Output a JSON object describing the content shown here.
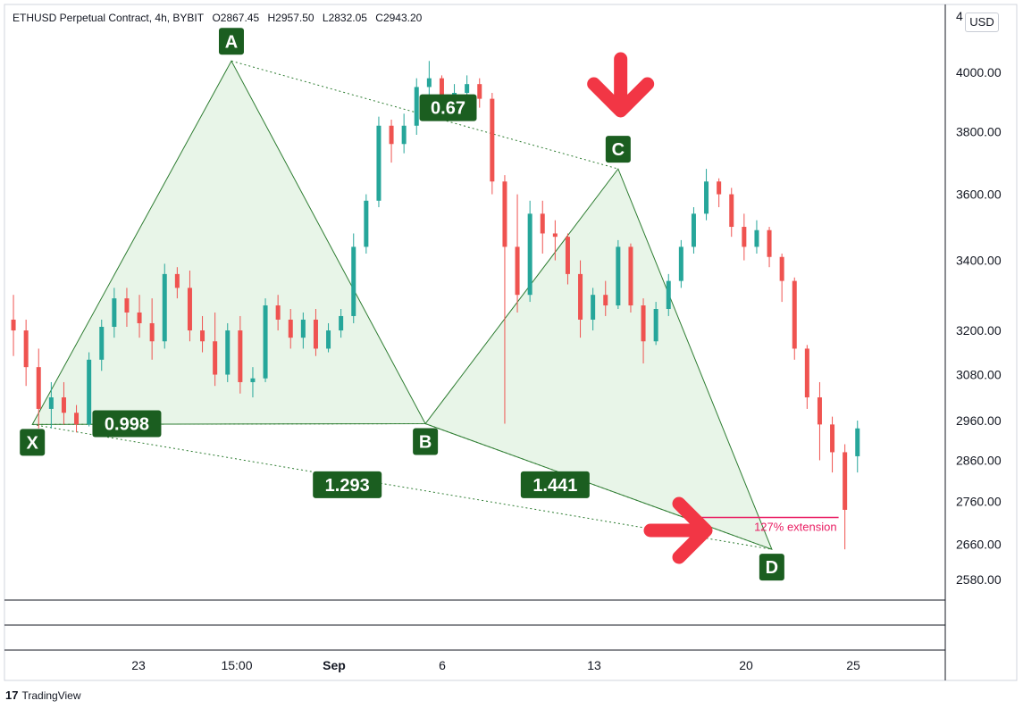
{
  "header": {
    "symbol": "ETHUSD Perpetual Contract, 4h, BYBIT",
    "open": "O2867.45",
    "high": "H2957.50",
    "low": "L2832.05",
    "close": "C2943.20"
  },
  "currency_button": "USD",
  "brand": {
    "logo": "17",
    "name": "TradingView"
  },
  "chart_data": {
    "type": "candlestick",
    "y_scale": "log",
    "ylim": [
      2550,
      4200
    ],
    "y_ticks": [
      "4000.00",
      "3800.00",
      "3600.00",
      "3400.00",
      "3200.00",
      "3080.00",
      "2960.00",
      "2860.00",
      "2760.00",
      "2660.00",
      "2580.00"
    ],
    "y_tick_values": [
      4000,
      3800,
      3600,
      3400,
      3200,
      3080,
      2960,
      2860,
      2760,
      2660,
      2580
    ],
    "y_tick_partial": "4",
    "x_ticks": [
      "23",
      "15:00",
      "Sep",
      "6",
      "13",
      "20",
      "25"
    ],
    "pattern_points": [
      {
        "label": "X",
        "time": 2.0,
        "price": 2950
      },
      {
        "label": "A",
        "time": 17.8,
        "price": 4040
      },
      {
        "label": "B",
        "time": 33.2,
        "price": 2952
      },
      {
        "label": "C",
        "time": 48.5,
        "price": 3680
      },
      {
        "label": "D",
        "time": 60.7,
        "price": 2648
      }
    ],
    "ratios": [
      {
        "label": "0.998",
        "time": 9.5,
        "price": 2952
      },
      {
        "label": "0.67",
        "time": 35.0,
        "price": 3880
      },
      {
        "label": "1.293",
        "time": 27.0,
        "price": 2800
      },
      {
        "label": "1.441",
        "time": 43.5,
        "price": 2800
      }
    ],
    "extension": {
      "label": "127% extension",
      "price": 2722,
      "from_time": 54.4,
      "to_time": 66.0
    },
    "candles": [
      {
        "o": 3230,
        "h": 3300,
        "l": 3130,
        "c": 3200
      },
      {
        "o": 3200,
        "h": 3230,
        "l": 3050,
        "c": 3100
      },
      {
        "o": 3100,
        "h": 3150,
        "l": 2940,
        "c": 2990
      },
      {
        "o": 2990,
        "h": 3060,
        "l": 2940,
        "c": 3020
      },
      {
        "o": 3020,
        "h": 3060,
        "l": 2950,
        "c": 2980
      },
      {
        "o": 2980,
        "h": 3000,
        "l": 2930,
        "c": 2950
      },
      {
        "o": 2950,
        "h": 3140,
        "l": 2945,
        "c": 3120
      },
      {
        "o": 3120,
        "h": 3230,
        "l": 3090,
        "c": 3210
      },
      {
        "o": 3210,
        "h": 3320,
        "l": 3180,
        "c": 3290
      },
      {
        "o": 3290,
        "h": 3320,
        "l": 3210,
        "c": 3250
      },
      {
        "o": 3250,
        "h": 3300,
        "l": 3180,
        "c": 3220
      },
      {
        "o": 3220,
        "h": 3290,
        "l": 3120,
        "c": 3170
      },
      {
        "o": 3170,
        "h": 3390,
        "l": 3150,
        "c": 3360
      },
      {
        "o": 3360,
        "h": 3380,
        "l": 3290,
        "c": 3320
      },
      {
        "o": 3320,
        "h": 3370,
        "l": 3170,
        "c": 3200
      },
      {
        "o": 3200,
        "h": 3240,
        "l": 3140,
        "c": 3170
      },
      {
        "o": 3170,
        "h": 3250,
        "l": 3050,
        "c": 3080
      },
      {
        "o": 3080,
        "h": 3220,
        "l": 3060,
        "c": 3200
      },
      {
        "o": 3200,
        "h": 3240,
        "l": 3030,
        "c": 3060
      },
      {
        "o": 3060,
        "h": 3100,
        "l": 3020,
        "c": 3070
      },
      {
        "o": 3070,
        "h": 3290,
        "l": 3060,
        "c": 3270
      },
      {
        "o": 3270,
        "h": 3300,
        "l": 3200,
        "c": 3230
      },
      {
        "o": 3230,
        "h": 3260,
        "l": 3150,
        "c": 3180
      },
      {
        "o": 3180,
        "h": 3250,
        "l": 3150,
        "c": 3230
      },
      {
        "o": 3230,
        "h": 3260,
        "l": 3130,
        "c": 3150
      },
      {
        "o": 3150,
        "h": 3220,
        "l": 3140,
        "c": 3200
      },
      {
        "o": 3200,
        "h": 3260,
        "l": 3180,
        "c": 3240
      },
      {
        "o": 3240,
        "h": 3480,
        "l": 3220,
        "c": 3440
      },
      {
        "o": 3440,
        "h": 3600,
        "l": 3420,
        "c": 3580
      },
      {
        "o": 3580,
        "h": 3850,
        "l": 3560,
        "c": 3820
      },
      {
        "o": 3820,
        "h": 3840,
        "l": 3700,
        "c": 3760
      },
      {
        "o": 3760,
        "h": 3860,
        "l": 3730,
        "c": 3820
      },
      {
        "o": 3820,
        "h": 3980,
        "l": 3790,
        "c": 3950
      },
      {
        "o": 3950,
        "h": 4040,
        "l": 3900,
        "c": 3980
      },
      {
        "o": 3980,
        "h": 3990,
        "l": 3850,
        "c": 3890
      },
      {
        "o": 3890,
        "h": 3960,
        "l": 3840,
        "c": 3930
      },
      {
        "o": 3930,
        "h": 3990,
        "l": 3890,
        "c": 3960
      },
      {
        "o": 3960,
        "h": 3980,
        "l": 3880,
        "c": 3910
      },
      {
        "o": 3910,
        "h": 3930,
        "l": 3600,
        "c": 3640
      },
      {
        "o": 3640,
        "h": 3660,
        "l": 2952,
        "c": 3440
      },
      {
        "o": 3440,
        "h": 3600,
        "l": 3250,
        "c": 3300
      },
      {
        "o": 3300,
        "h": 3580,
        "l": 3280,
        "c": 3540
      },
      {
        "o": 3540,
        "h": 3580,
        "l": 3420,
        "c": 3480
      },
      {
        "o": 3480,
        "h": 3520,
        "l": 3400,
        "c": 3470
      },
      {
        "o": 3470,
        "h": 3480,
        "l": 3330,
        "c": 3360
      },
      {
        "o": 3360,
        "h": 3400,
        "l": 3180,
        "c": 3230
      },
      {
        "o": 3230,
        "h": 3320,
        "l": 3200,
        "c": 3300
      },
      {
        "o": 3300,
        "h": 3340,
        "l": 3240,
        "c": 3270
      },
      {
        "o": 3270,
        "h": 3460,
        "l": 3260,
        "c": 3440
      },
      {
        "o": 3440,
        "h": 3450,
        "l": 3250,
        "c": 3270
      },
      {
        "o": 3270,
        "h": 3290,
        "l": 3110,
        "c": 3170
      },
      {
        "o": 3170,
        "h": 3280,
        "l": 3160,
        "c": 3260
      },
      {
        "o": 3260,
        "h": 3360,
        "l": 3240,
        "c": 3340
      },
      {
        "o": 3340,
        "h": 3460,
        "l": 3320,
        "c": 3440
      },
      {
        "o": 3440,
        "h": 3560,
        "l": 3420,
        "c": 3540
      },
      {
        "o": 3540,
        "h": 3680,
        "l": 3520,
        "c": 3640
      },
      {
        "o": 3640,
        "h": 3650,
        "l": 3560,
        "c": 3600
      },
      {
        "o": 3600,
        "h": 3620,
        "l": 3470,
        "c": 3500
      },
      {
        "o": 3500,
        "h": 3540,
        "l": 3400,
        "c": 3440
      },
      {
        "o": 3440,
        "h": 3520,
        "l": 3420,
        "c": 3490
      },
      {
        "o": 3490,
        "h": 3500,
        "l": 3380,
        "c": 3410
      },
      {
        "o": 3410,
        "h": 3420,
        "l": 3280,
        "c": 3340
      },
      {
        "o": 3340,
        "h": 3350,
        "l": 3120,
        "c": 3150
      },
      {
        "o": 3150,
        "h": 3160,
        "l": 2990,
        "c": 3020
      },
      {
        "o": 3020,
        "h": 3060,
        "l": 2860,
        "c": 2950
      },
      {
        "o": 2950,
        "h": 2970,
        "l": 2830,
        "c": 2880
      },
      {
        "o": 2880,
        "h": 2900,
        "l": 2648,
        "c": 2740
      },
      {
        "o": 2870,
        "h": 2960,
        "l": 2830,
        "c": 2940
      }
    ]
  }
}
